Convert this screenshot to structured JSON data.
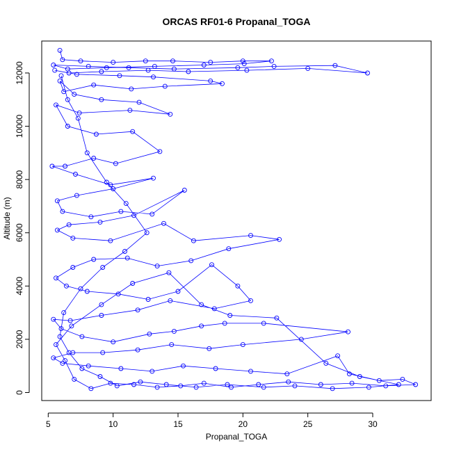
{
  "chart_data": {
    "type": "scatter",
    "title": "ORCAS RF01-6 Propanal_TOGA",
    "xlabel": "Propanal_TOGA",
    "ylabel": "Altitude (m)",
    "xlim": [
      4.5,
      34.5
    ],
    "ylim": [
      -300,
      13200
    ],
    "x_ticks": [
      5,
      10,
      15,
      20,
      25,
      30
    ],
    "y_ticks": [
      0,
      2000,
      4000,
      6000,
      8000,
      10000,
      12000
    ],
    "x_tick_labels": [
      "5",
      "10",
      "15",
      "20",
      "25",
      "30"
    ],
    "y_tick_labels": [
      "0",
      "2000",
      "4000",
      "6000",
      "8000",
      "10000",
      "12000"
    ],
    "grid": false,
    "legend": "none",
    "series": [
      {
        "color": "#0000ff",
        "marker": "open-circle",
        "connected": true,
        "points": [
          [
            5.9,
            12850
          ],
          [
            6.1,
            12500
          ],
          [
            7.5,
            12450
          ],
          [
            10.0,
            12400
          ],
          [
            12.5,
            12450
          ],
          [
            14.6,
            12450
          ],
          [
            17.5,
            12400
          ],
          [
            20.0,
            12450
          ],
          [
            22.2,
            12450
          ],
          [
            20.1,
            12350
          ],
          [
            17.0,
            12300
          ],
          [
            13.2,
            12250
          ],
          [
            9.5,
            12200
          ],
          [
            6.5,
            12150
          ],
          [
            5.4,
            12300
          ],
          [
            8.1,
            12250
          ],
          [
            11.2,
            12200
          ],
          [
            14.7,
            12150
          ],
          [
            19.6,
            12200
          ],
          [
            22.4,
            12250
          ],
          [
            27.1,
            12280
          ],
          [
            29.6,
            12000
          ],
          [
            25.0,
            12170
          ],
          [
            20.3,
            12100
          ],
          [
            15.8,
            12050
          ],
          [
            12.7,
            12100
          ],
          [
            9.1,
            12050
          ],
          [
            6.6,
            12000
          ],
          [
            5.5,
            12100
          ],
          [
            7.2,
            11950
          ],
          [
            10.5,
            11900
          ],
          [
            13.1,
            11850
          ],
          [
            17.5,
            11700
          ],
          [
            18.4,
            11600
          ],
          [
            14.0,
            11500
          ],
          [
            11.4,
            11400
          ],
          [
            8.5,
            11550
          ],
          [
            6.2,
            11300
          ],
          [
            5.9,
            11700
          ],
          [
            7.0,
            11200
          ],
          [
            9.1,
            11000
          ],
          [
            12.0,
            10900
          ],
          [
            14.4,
            10450
          ],
          [
            11.3,
            10600
          ],
          [
            7.4,
            10500
          ],
          [
            5.6,
            10800
          ],
          [
            6.5,
            10000
          ],
          [
            8.7,
            9700
          ],
          [
            11.5,
            9800
          ],
          [
            13.6,
            9050
          ],
          [
            10.2,
            8600
          ],
          [
            8.5,
            8800
          ],
          [
            6.3,
            8500
          ],
          [
            5.3,
            8500
          ],
          [
            7.1,
            8200
          ],
          [
            9.8,
            7800
          ],
          [
            13.1,
            8050
          ],
          [
            10.0,
            7650
          ],
          [
            7.2,
            7400
          ],
          [
            5.7,
            7200
          ],
          [
            6.1,
            6800
          ],
          [
            8.3,
            6600
          ],
          [
            10.6,
            6800
          ],
          [
            13.0,
            6700
          ],
          [
            15.5,
            7600
          ],
          [
            11.6,
            6650
          ],
          [
            9.0,
            6400
          ],
          [
            6.6,
            6300
          ],
          [
            5.7,
            6100
          ],
          [
            6.9,
            5800
          ],
          [
            9.8,
            5700
          ],
          [
            13.9,
            6350
          ],
          [
            16.2,
            5700
          ],
          [
            20.6,
            5900
          ],
          [
            22.8,
            5750
          ],
          [
            18.9,
            5400
          ],
          [
            16.0,
            4950
          ],
          [
            13.4,
            4750
          ],
          [
            11.1,
            5050
          ],
          [
            8.5,
            5000
          ],
          [
            6.9,
            4700
          ],
          [
            5.6,
            4300
          ],
          [
            6.4,
            4000
          ],
          [
            8.0,
            3800
          ],
          [
            10.4,
            3700
          ],
          [
            12.7,
            3500
          ],
          [
            15.0,
            3800
          ],
          [
            17.6,
            4800
          ],
          [
            19.6,
            4000
          ],
          [
            20.6,
            3450
          ],
          [
            17.8,
            3150
          ],
          [
            14.4,
            3450
          ],
          [
            11.9,
            3100
          ],
          [
            9.1,
            2900
          ],
          [
            6.7,
            2700
          ],
          [
            5.4,
            2750
          ],
          [
            6.0,
            2400
          ],
          [
            7.6,
            2100
          ],
          [
            10.0,
            1900
          ],
          [
            12.8,
            2200
          ],
          [
            14.7,
            2300
          ],
          [
            16.8,
            2500
          ],
          [
            18.6,
            2600
          ],
          [
            21.6,
            2600
          ],
          [
            28.1,
            2280
          ],
          [
            24.5,
            2000
          ],
          [
            20.0,
            1800
          ],
          [
            17.4,
            1650
          ],
          [
            14.5,
            1800
          ],
          [
            11.9,
            1600
          ],
          [
            9.2,
            1500
          ],
          [
            6.9,
            1500
          ],
          [
            5.4,
            1300
          ],
          [
            6.1,
            1100
          ],
          [
            8.1,
            1000
          ],
          [
            10.6,
            900
          ],
          [
            13.0,
            800
          ],
          [
            15.4,
            1000
          ],
          [
            17.9,
            900
          ],
          [
            20.6,
            800
          ],
          [
            23.4,
            700
          ],
          [
            27.3,
            1380
          ],
          [
            28.2,
            700
          ],
          [
            30.5,
            450
          ],
          [
            32.3,
            500
          ],
          [
            33.3,
            300
          ],
          [
            31.0,
            250
          ],
          [
            28.4,
            350
          ],
          [
            26.0,
            300
          ],
          [
            23.5,
            400
          ],
          [
            21.2,
            300
          ],
          [
            19.1,
            200
          ],
          [
            17.0,
            350
          ],
          [
            15.2,
            250
          ],
          [
            13.4,
            200
          ],
          [
            11.6,
            300
          ],
          [
            9.8,
            350
          ],
          [
            8.3,
            150
          ],
          [
            7.0,
            500
          ],
          [
            6.3,
            1200
          ],
          [
            5.6,
            1800
          ],
          [
            6.8,
            2500
          ],
          [
            9.1,
            3300
          ],
          [
            11.5,
            4100
          ],
          [
            14.3,
            4500
          ],
          [
            16.8,
            3300
          ],
          [
            19.0,
            2900
          ],
          [
            22.6,
            2800
          ],
          [
            26.4,
            1100
          ],
          [
            29.0,
            600
          ],
          [
            32.0,
            300
          ],
          [
            29.7,
            200
          ],
          [
            26.9,
            150
          ],
          [
            24.0,
            250
          ],
          [
            21.6,
            200
          ],
          [
            18.8,
            300
          ],
          [
            16.4,
            200
          ],
          [
            14.1,
            300
          ],
          [
            12.1,
            400
          ],
          [
            10.3,
            250
          ],
          [
            9.0,
            600
          ],
          [
            7.6,
            900
          ],
          [
            6.6,
            1500
          ],
          [
            5.9,
            2100
          ],
          [
            6.2,
            3000
          ],
          [
            7.5,
            3900
          ],
          [
            9.2,
            4700
          ],
          [
            10.9,
            5300
          ],
          [
            12.6,
            6000
          ],
          [
            11.0,
            7100
          ],
          [
            9.5,
            7900
          ],
          [
            8.0,
            9000
          ],
          [
            7.3,
            10300
          ],
          [
            6.5,
            11000
          ],
          [
            6.0,
            11900
          ]
        ]
      }
    ]
  }
}
